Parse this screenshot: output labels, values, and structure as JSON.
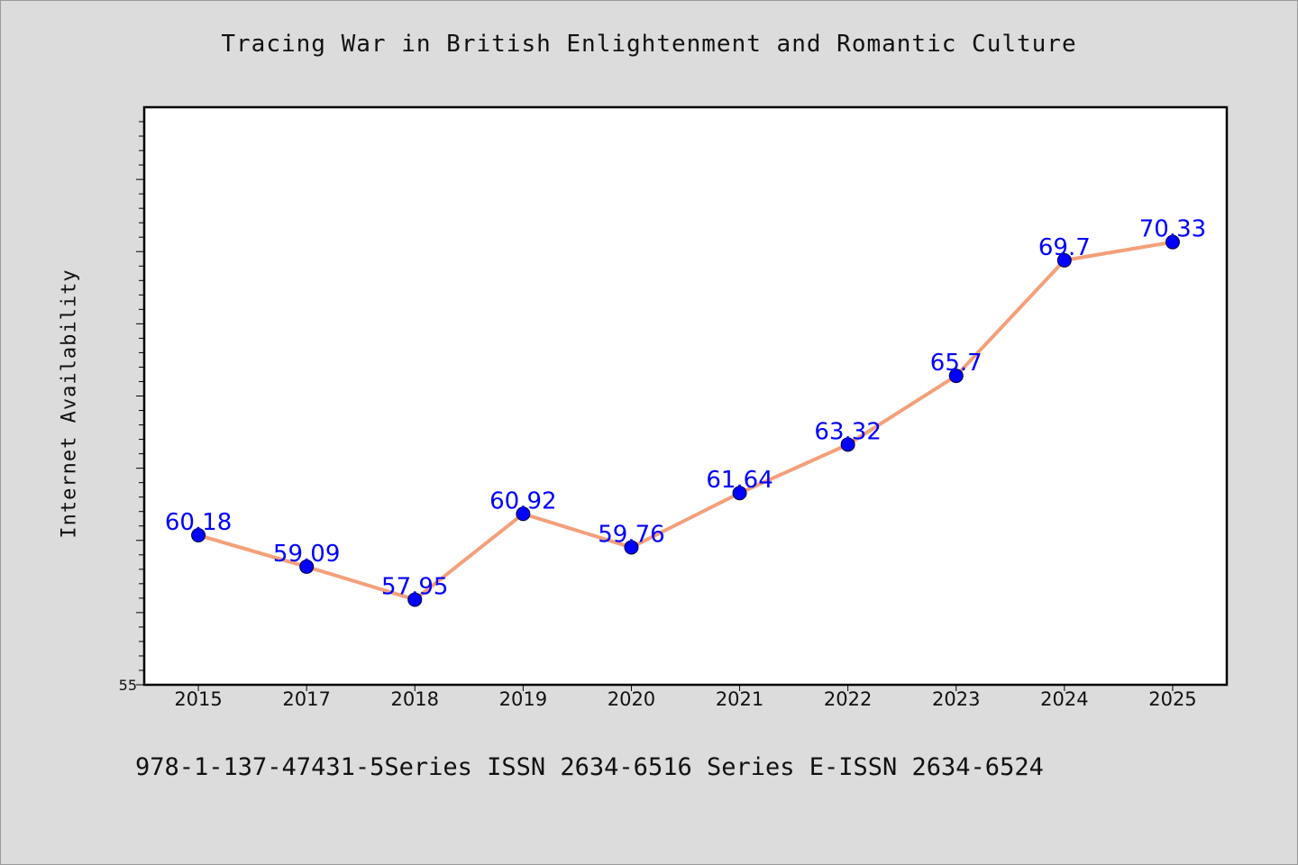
{
  "chart_data": {
    "type": "line",
    "title": "Tracing War in British Enlightenment and Romantic Culture",
    "xlabel": "",
    "ylabel": "Internet Availability",
    "categories": [
      "2015",
      "2017",
      "2018",
      "2019",
      "2020",
      "2021",
      "2022",
      "2023",
      "2024",
      "2025"
    ],
    "series": [
      {
        "values": [
          60.18,
          59.09,
          57.95,
          60.92,
          59.76,
          61.64,
          63.32,
          65.7,
          69.7,
          70.33
        ],
        "data_labels": [
          "60.18",
          "59.09",
          "57.95",
          "60.92",
          "59.76",
          "61.64",
          "63.32",
          "65.7",
          "69.7",
          "70.33"
        ]
      }
    ],
    "ylim": [
      55,
      75
    ],
    "y_tick_labels": [
      "55"
    ],
    "grid": false,
    "line_color": "#f4a07a",
    "marker_color": "#0000ff",
    "label_color": "#0000ff"
  },
  "footer": {
    "text": "978-1-137-47431-5Series ISSN 2634-6516 Series E-ISSN 2634-6524"
  }
}
